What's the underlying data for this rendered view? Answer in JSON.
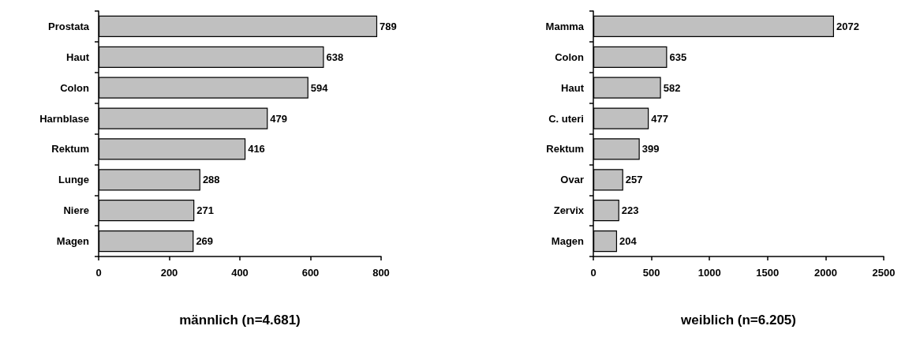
{
  "chart_data": [
    {
      "type": "bar",
      "orientation": "horizontal",
      "xlabel": "männlich (n=4.681)",
      "categories": [
        "Prostata",
        "Haut",
        "Colon",
        "Harnblase",
        "Rektum",
        "Lunge",
        "Niere",
        "Magen"
      ],
      "values": [
        789,
        638,
        594,
        479,
        416,
        288,
        271,
        269
      ],
      "color": "#c0c0c0",
      "xlim": [
        0,
        800
      ],
      "xticks": [
        0,
        200,
        400,
        600,
        800
      ],
      "data_labels": true
    },
    {
      "type": "bar",
      "orientation": "horizontal",
      "xlabel": "weiblich (n=6.205)",
      "categories": [
        "Mamma",
        "Colon",
        "Haut",
        "C. uteri",
        "Rektum",
        "Ovar",
        "Zervix",
        "Magen"
      ],
      "values": [
        2072,
        635,
        582,
        477,
        399,
        257,
        223,
        204
      ],
      "color": "#c0c0c0",
      "xlim": [
        0,
        2500
      ],
      "xticks": [
        0,
        500,
        1000,
        1500,
        2000,
        2500
      ],
      "data_labels": true
    }
  ]
}
